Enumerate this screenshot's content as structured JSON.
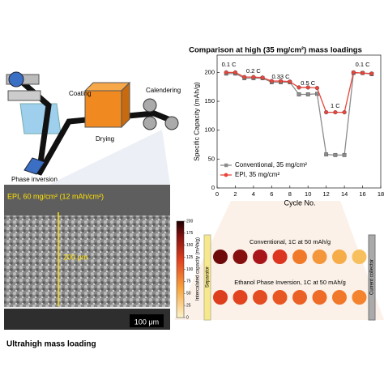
{
  "chart_data": {
    "type": "line",
    "title": "Comparison at high (35 mg/cm²) mass loadings",
    "x_label": "Cycle No.",
    "y_label": "Specific Capacity (mAh/g)",
    "x": [
      1,
      2,
      3,
      4,
      5,
      6,
      7,
      8,
      9,
      10,
      11,
      12,
      13,
      14,
      15,
      16,
      17
    ],
    "series": [
      {
        "name": "Conventional, 35 mg/cm²",
        "color": "#8c8c8c",
        "marker": "square",
        "values": [
          198,
          198,
          190,
          190,
          190,
          183,
          183,
          183,
          162,
          162,
          163,
          58,
          57,
          57,
          199,
          199,
          197
        ]
      },
      {
        "name": "EPI, 35 mg/cm²",
        "color": "#e8453c",
        "marker": "circle",
        "values": [
          200,
          200,
          192,
          192,
          191,
          185,
          185,
          184,
          174,
          174,
          173,
          131,
          131,
          131,
          200,
          199,
          198
        ]
      }
    ],
    "annotations": [
      "0.1 C",
      "0.2 C",
      "0.33 C",
      "0.5 C",
      "1 C",
      "0.1 C"
    ],
    "xlim": [
      0,
      18
    ],
    "xticks": [
      0,
      2,
      4,
      6,
      8,
      10,
      12,
      14,
      16,
      18
    ],
    "ylim": [
      0,
      230
    ],
    "yticks": [
      0,
      50,
      100,
      150,
      200
    ],
    "legend": "lower left"
  },
  "process": {
    "labels": [
      "Coating",
      "Calendering",
      "Drying",
      "Phase inversion"
    ]
  },
  "sem": {
    "caption": "EPI, 60 mg/cm² (12 mAh/cm²)",
    "thickness": "200 μm",
    "scale": "100 μm",
    "footer": "Ultrahigh mass loading"
  },
  "color_map": {
    "label": "Intercalated capacity (mAh/g)",
    "ticks": [
      0,
      25,
      50,
      75,
      100,
      125,
      150,
      175,
      200
    ],
    "left": "Separator",
    "right": "Current collector",
    "rows": [
      {
        "title": "Conventional, 1C at 50 mAh/g",
        "colors": [
          "#6e0a0a",
          "#861010",
          "#a8161a",
          "#dc3520",
          "#f07a2a",
          "#f4963a",
          "#f6ac48",
          "#f8bf5e"
        ]
      },
      {
        "title": "Ethanol Phase Inversion, 1C at 50 mAh/g",
        "colors": [
          "#dd3e1e",
          "#e1441f",
          "#e44c21",
          "#e85623",
          "#eb6025",
          "#ee6b28",
          "#f1772b",
          "#f3832f"
        ]
      }
    ]
  }
}
